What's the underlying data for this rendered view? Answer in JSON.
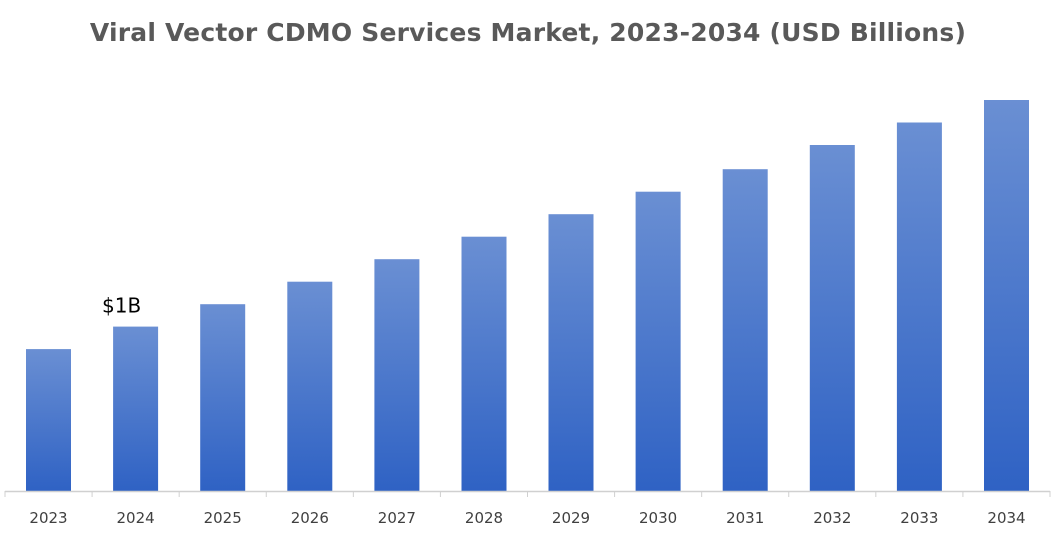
{
  "chart_data": {
    "type": "bar",
    "title": "Viral Vector CDMO Services Market, 2023-2034 (USD Billions)",
    "xlabel": "",
    "ylabel": "",
    "categories": [
      "2023",
      "2024",
      "2025",
      "2026",
      "2027",
      "2028",
      "2029",
      "2030",
      "2031",
      "2032",
      "2033",
      "2034"
    ],
    "values": [
      0.82,
      0.95,
      1.08,
      1.21,
      1.34,
      1.47,
      1.6,
      1.73,
      1.86,
      2.0,
      2.13,
      2.26
    ],
    "ylim": [
      0,
      2.26
    ],
    "data_labels": [
      {
        "category": "2024",
        "text": "$1B"
      }
    ],
    "grid": false,
    "legend": "none",
    "bar_color_top": "#6a8fd3",
    "bar_color_bottom": "#2f62c4"
  }
}
